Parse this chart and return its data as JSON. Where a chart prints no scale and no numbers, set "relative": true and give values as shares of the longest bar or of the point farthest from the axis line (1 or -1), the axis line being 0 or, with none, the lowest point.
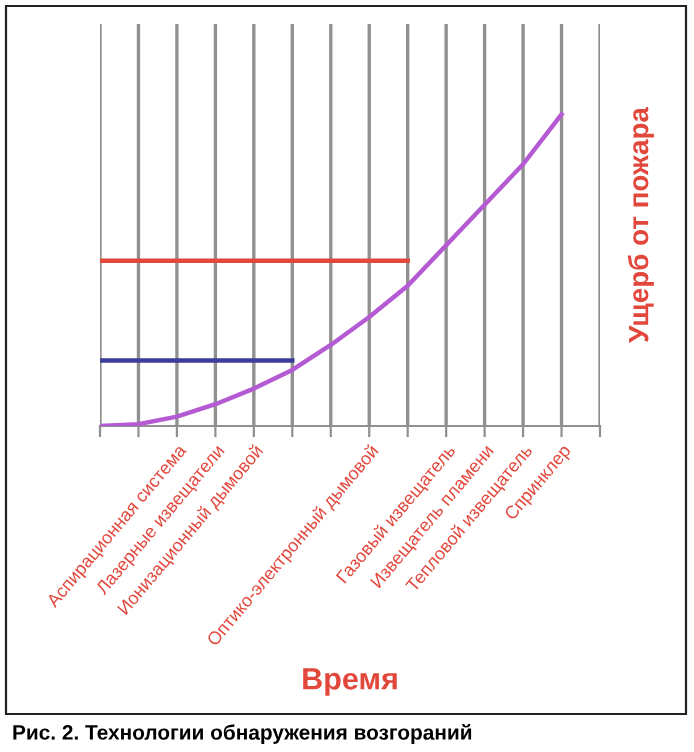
{
  "chart_data": {
    "type": "line",
    "relative": true,
    "xlabel": "Время",
    "y2label": "Ущерб от пожара",
    "categories": [
      null,
      null,
      "Аспирационная система",
      "Лазерные извещатели",
      "Ионизационный дымовой",
      null,
      null,
      "Оптико-электронный дымовой",
      null,
      "Газовый извещатель",
      "Извещатель пламени",
      "Тепловой извещатель",
      "Спринклер",
      null
    ],
    "series": [
      {
        "color": "#b45ad2",
        "values": [
          0,
          0.006,
          0.03,
          0.07,
          0.12,
          0.18,
          0.26,
          0.35,
          0.45,
          0.58,
          0.71,
          0.84,
          1.0,
          null
        ]
      },
      {
        "color": "#e2473c",
        "values": [
          0.53,
          0.53,
          0.53,
          0.53,
          0.53,
          0.53,
          0.53,
          0.53,
          0.53,
          null,
          null,
          null,
          null,
          null
        ]
      },
      {
        "color": "#3c3c9c",
        "values": [
          0.21,
          0.21,
          0.21,
          0.21,
          0.21,
          0.21,
          null,
          null,
          null,
          null,
          null,
          null,
          null,
          null
        ]
      }
    ],
    "grid": "x",
    "legend": false,
    "marker": "none",
    "line_style": "solid",
    "annotations": [
      "Рис. 2. Технологии обнаружения возгораний"
    ]
  }
}
